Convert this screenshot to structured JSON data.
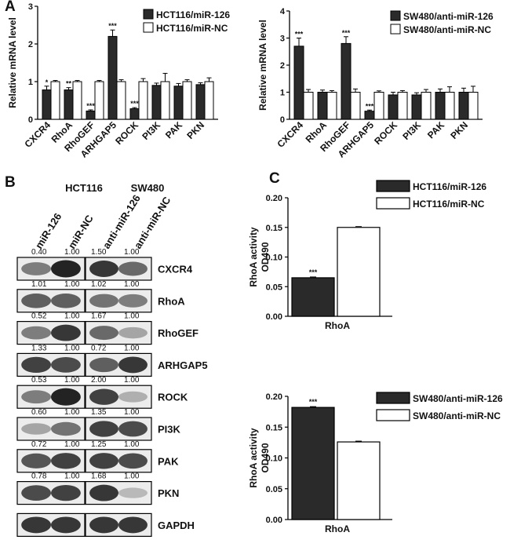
{
  "panels": {
    "a": "A",
    "b": "B",
    "c": "C"
  },
  "colors": {
    "filled": "#2a2a2a",
    "open": "#ffffff",
    "stroke": "#000000"
  },
  "chart_data": [
    {
      "id": "A-left",
      "type": "bar",
      "ylabel": "Relative mRNA level",
      "ylim": [
        0,
        3
      ],
      "yticks": [
        "0",
        "1",
        "2",
        "3"
      ],
      "categories": [
        "CXCR4",
        "RhoA",
        "RhoGEF",
        "ARHGAP5",
        "ROCK",
        "PI3K",
        "PAK",
        "PKN"
      ],
      "series": [
        {
          "name": "HCT116/miR-126",
          "style": "filled",
          "values": [
            0.78,
            0.78,
            0.22,
            2.2,
            0.28,
            0.9,
            0.88,
            0.92
          ],
          "errors": [
            0.1,
            0.06,
            0.03,
            0.17,
            0.03,
            0.06,
            0.07,
            0.05
          ]
        },
        {
          "name": "HCT116/miR-NC",
          "style": "open",
          "values": [
            1.0,
            1.0,
            1.0,
            1.0,
            1.0,
            1.0,
            1.0,
            1.0
          ],
          "errors": [
            0.03,
            0.03,
            0.03,
            0.05,
            0.08,
            0.22,
            0.05,
            0.1
          ]
        }
      ],
      "annotations": [
        "*",
        "**",
        "***",
        "***",
        "***",
        "",
        "",
        ""
      ]
    },
    {
      "id": "A-right",
      "type": "bar",
      "ylabel": "Relative mRNA level",
      "ylim": [
        0,
        4
      ],
      "yticks": [
        "0",
        "1",
        "2",
        "3",
        "4"
      ],
      "categories": [
        "CXCR4",
        "RhoA",
        "RhoGEF",
        "ARHGAP5",
        "ROCK",
        "PI3K",
        "PAK",
        "PKN"
      ],
      "series": [
        {
          "name": "SW480/anti-miR-126",
          "style": "filled",
          "values": [
            2.7,
            1.0,
            2.8,
            0.3,
            0.9,
            0.9,
            1.0,
            1.0
          ],
          "errors": [
            0.3,
            0.08,
            0.25,
            0.04,
            0.1,
            0.08,
            0.12,
            0.15
          ]
        },
        {
          "name": "SW480/anti-miR-NC",
          "style": "open",
          "values": [
            1.0,
            1.0,
            1.0,
            1.0,
            1.0,
            1.0,
            1.0,
            1.0
          ],
          "errors": [
            0.1,
            0.06,
            0.12,
            0.05,
            0.06,
            0.1,
            0.2,
            0.22
          ]
        }
      ],
      "annotations": [
        "***",
        "",
        "***",
        "***",
        "",
        "",
        "",
        ""
      ]
    },
    {
      "id": "C-top",
      "type": "bar",
      "ylabel": [
        "RhoA activity",
        "OD490"
      ],
      "ylim": [
        0,
        0.2
      ],
      "yticks": [
        "0.00",
        "0.05",
        "0.10",
        "0.15",
        "0.20"
      ],
      "categories": [
        "RhoA"
      ],
      "series": [
        {
          "name": "HCT116/miR-126",
          "style": "filled",
          "values": [
            0.065
          ]
        },
        {
          "name": "HCT116/miR-NC",
          "style": "open",
          "values": [
            0.15
          ]
        }
      ],
      "annotations": [
        "***"
      ]
    },
    {
      "id": "C-bottom",
      "type": "bar",
      "ylabel": [
        "RhoA activity",
        "OD490"
      ],
      "ylim": [
        0,
        0.2
      ],
      "yticks": [
        "0.00",
        "0.05",
        "0.10",
        "0.15",
        "0.20"
      ],
      "categories": [
        "RhoA"
      ],
      "series": [
        {
          "name": "SW480/anti-miR-126",
          "style": "filled",
          "values": [
            0.182
          ]
        },
        {
          "name": "SW480/anti-miR-NC",
          "style": "open",
          "values": [
            0.126
          ]
        }
      ],
      "annotations": [
        "***"
      ]
    }
  ],
  "blot": {
    "group_left": "HCT116",
    "group_right": "SW480",
    "lanes_left": [
      "miR-126",
      "miR-NC"
    ],
    "lanes_right": [
      "anti-miR-126",
      "anti-miR-NC"
    ],
    "rows": [
      {
        "protein": "CXCR4",
        "left": [
          "0.40",
          "1.00"
        ],
        "right": [
          "1.50",
          "1.00"
        ],
        "intensity_left": [
          0.55,
          1.0
        ],
        "intensity_right": [
          0.9,
          0.65
        ]
      },
      {
        "protein": "RhoA",
        "left": [
          "1.01",
          "1.00"
        ],
        "right": [
          "1.02",
          "1.00"
        ],
        "intensity_left": [
          0.7,
          0.7
        ],
        "intensity_right": [
          0.6,
          0.55
        ]
      },
      {
        "protein": "RhoGEF",
        "left": [
          "0.52",
          "1.00"
        ],
        "right": [
          "1.67",
          "1.00"
        ],
        "intensity_left": [
          0.55,
          0.9
        ],
        "intensity_right": [
          0.65,
          0.35
        ]
      },
      {
        "protein": "ARHGAP5",
        "left": [
          "1.33",
          "1.00"
        ],
        "right": [
          "0.72",
          "1.00"
        ],
        "intensity_left": [
          0.85,
          0.8
        ],
        "intensity_right": [
          0.7,
          0.9
        ]
      },
      {
        "protein": "ROCK",
        "left": [
          "0.53",
          "1.00"
        ],
        "right": [
          "2.00",
          "1.00"
        ],
        "intensity_left": [
          0.55,
          1.0
        ],
        "intensity_right": [
          0.85,
          0.3
        ]
      },
      {
        "protein": "PI3K",
        "left": [
          "0.60",
          "1.00"
        ],
        "right": [
          "1.35",
          "1.00"
        ],
        "intensity_left": [
          0.35,
          0.6
        ],
        "intensity_right": [
          0.85,
          0.8
        ]
      },
      {
        "protein": "PAK",
        "left": [
          "0.72",
          "1.00"
        ],
        "right": [
          "1.25",
          "1.00"
        ],
        "intensity_left": [
          0.75,
          0.85
        ],
        "intensity_right": [
          0.85,
          0.8
        ]
      },
      {
        "protein": "PKN",
        "left": [
          "0.78",
          "1.00"
        ],
        "right": [
          "1.68",
          "1.00"
        ],
        "intensity_left": [
          0.8,
          0.85
        ],
        "intensity_right": [
          0.9,
          0.25
        ]
      },
      {
        "protein": "GAPDH",
        "left": [],
        "right": [],
        "intensity_left": [
          0.9,
          0.9
        ],
        "intensity_right": [
          0.9,
          0.9
        ]
      }
    ]
  }
}
